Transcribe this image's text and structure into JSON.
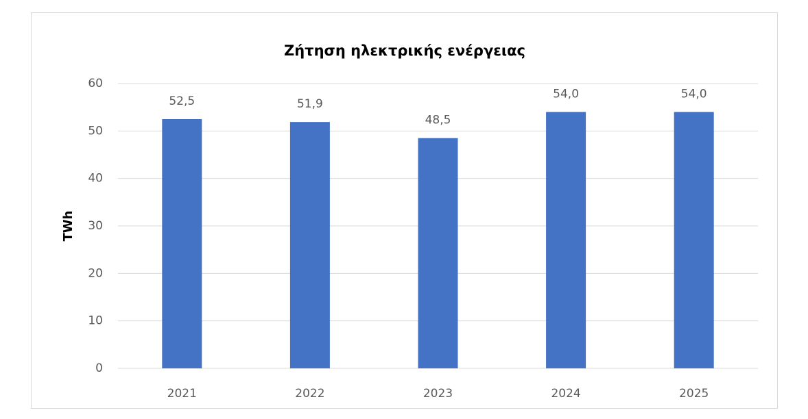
{
  "chart_data": {
    "type": "bar",
    "title": "Ζήτηση ηλεκτρικής ενέργειας",
    "y_label": "TWh",
    "categories": [
      "2021",
      "2022",
      "2023",
      "2024",
      "2025"
    ],
    "values": [
      52.5,
      51.9,
      48.5,
      54.0,
      54.0
    ],
    "value_labels": [
      "52,5",
      "51,9",
      "48,5",
      "54,0",
      "54,0"
    ],
    "color": "#4472c4",
    "ylim": [
      0,
      60
    ],
    "yticks": [
      0,
      10,
      20,
      30,
      40,
      50,
      60
    ],
    "grid": true
  }
}
